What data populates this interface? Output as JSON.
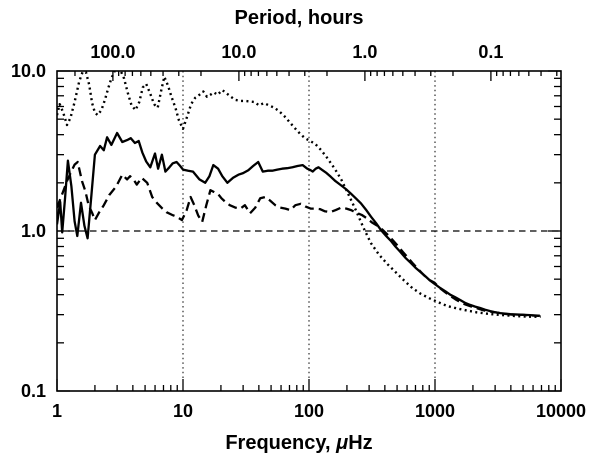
{
  "figure": {
    "background": "#ffffff",
    "foreground": "#000000",
    "top_title": "Period, hours",
    "xlabel_prefix": "Frequency, ",
    "xlabel_mu": "μ",
    "xlabel_suffix": "Hz"
  },
  "chart_data": {
    "type": "line",
    "title": "Period, hours (top axis) vs Frequency (bottom axis)",
    "xlabel": "Frequency, μHz",
    "ylabel": "",
    "x_axis": {
      "scale": "log",
      "range": [
        1,
        10000
      ],
      "ticks": [
        1,
        10,
        100,
        1000,
        10000
      ],
      "tick_labels": [
        "1",
        "10",
        "100",
        "1000",
        "10000"
      ]
    },
    "y_axis": {
      "scale": "log",
      "range": [
        0.1,
        10
      ],
      "ticks": [
        0.1,
        1,
        10
      ],
      "tick_labels": [
        "0.1",
        "1.0",
        "10.0"
      ]
    },
    "top_axis": {
      "label": "Period, hours",
      "ticks_period_hours": [
        100,
        10,
        1,
        0.1
      ],
      "tick_labels": [
        "100.0",
        "10.0",
        "1.0",
        "0.1"
      ]
    },
    "gridlines": {
      "vertical_x": [
        10,
        100,
        1000
      ],
      "vertical_style": "dotted",
      "horizontal_y": [
        1.0
      ],
      "horizontal_style": "dashed"
    },
    "legend": "none",
    "series": [
      {
        "name": "dotted-curve",
        "style": "dotted",
        "points": [
          [
            1.0,
            5.3
          ],
          [
            1.05,
            6.2
          ],
          [
            1.12,
            5.5
          ],
          [
            1.2,
            4.6
          ],
          [
            1.28,
            5.1
          ],
          [
            1.38,
            6.4
          ],
          [
            1.5,
            8.6
          ],
          [
            1.6,
            9.9
          ],
          [
            1.7,
            9.8
          ],
          [
            1.8,
            8.2
          ],
          [
            1.9,
            6.3
          ],
          [
            2.0,
            5.5
          ],
          [
            2.1,
            5.3
          ],
          [
            2.25,
            5.7
          ],
          [
            2.4,
            6.6
          ],
          [
            2.55,
            7.8
          ],
          [
            2.7,
            9.0
          ],
          [
            2.9,
            10.2
          ],
          [
            3.15,
            10.3
          ],
          [
            3.4,
            9.0
          ],
          [
            3.65,
            7.3
          ],
          [
            3.9,
            6.1
          ],
          [
            4.2,
            5.7
          ],
          [
            4.5,
            6.4
          ],
          [
            4.8,
            7.9
          ],
          [
            5.1,
            8.3
          ],
          [
            5.5,
            7.2
          ],
          [
            5.9,
            6.2
          ],
          [
            6.3,
            5.9
          ],
          [
            6.7,
            7.5
          ],
          [
            7.1,
            9.2
          ],
          [
            7.6,
            8.1
          ],
          [
            8.1,
            6.9
          ],
          [
            8.7,
            5.9
          ],
          [
            9.3,
            4.9
          ],
          [
            10.0,
            4.35
          ],
          [
            10.8,
            5.2
          ],
          [
            11.6,
            6.2
          ],
          [
            12.5,
            6.8
          ],
          [
            13.5,
            7.1
          ],
          [
            14.5,
            7.45
          ],
          [
            15.5,
            6.9
          ],
          [
            16.5,
            7.1
          ],
          [
            17.6,
            7.35
          ],
          [
            18.8,
            7.1
          ],
          [
            20.5,
            7.6
          ],
          [
            22.0,
            7.3
          ],
          [
            24.0,
            6.9
          ],
          [
            26.0,
            6.6
          ],
          [
            28.5,
            6.5
          ],
          [
            31.0,
            6.5
          ],
          [
            34.0,
            6.45
          ],
          [
            37.0,
            6.4
          ],
          [
            40.0,
            6.1
          ],
          [
            44.0,
            6.3
          ],
          [
            48.0,
            6.1
          ],
          [
            53.0,
            5.9
          ],
          [
            58.0,
            5.6
          ],
          [
            64.0,
            5.2
          ],
          [
            70.0,
            4.8
          ],
          [
            77.0,
            4.4
          ],
          [
            85.0,
            4.05
          ],
          [
            93.0,
            3.8
          ],
          [
            102.0,
            3.65
          ],
          [
            112.0,
            3.5
          ],
          [
            125.0,
            3.2
          ],
          [
            140.0,
            2.85
          ],
          [
            160.0,
            2.45
          ],
          [
            180.0,
            2.1
          ],
          [
            205.0,
            1.7
          ],
          [
            235.0,
            1.35
          ],
          [
            270.0,
            1.05
          ],
          [
            310.0,
            0.84
          ],
          [
            360.0,
            0.71
          ],
          [
            420.0,
            0.62
          ],
          [
            490.0,
            0.55
          ],
          [
            570.0,
            0.49
          ],
          [
            660.0,
            0.44
          ],
          [
            770.0,
            0.405
          ],
          [
            900.0,
            0.38
          ],
          [
            1050.0,
            0.36
          ],
          [
            1250.0,
            0.34
          ],
          [
            1500.0,
            0.328
          ],
          [
            1800.0,
            0.318
          ],
          [
            2150.0,
            0.31
          ],
          [
            2600.0,
            0.304
          ],
          [
            3100.0,
            0.3
          ],
          [
            3700.0,
            0.297
          ],
          [
            4400.0,
            0.294
          ],
          [
            5200.0,
            0.292
          ],
          [
            6100.0,
            0.291
          ],
          [
            6900.0,
            0.292
          ]
        ]
      },
      {
        "name": "solid-curve",
        "style": "solid",
        "points": [
          [
            1.0,
            1.1
          ],
          [
            1.06,
            1.52
          ],
          [
            1.1,
            0.98
          ],
          [
            1.16,
            1.62
          ],
          [
            1.22,
            2.75
          ],
          [
            1.3,
            1.9
          ],
          [
            1.38,
            1.15
          ],
          [
            1.45,
            0.93
          ],
          [
            1.55,
            1.5
          ],
          [
            1.65,
            1.08
          ],
          [
            1.75,
            0.9
          ],
          [
            1.88,
            1.7
          ],
          [
            2.0,
            3.0
          ],
          [
            2.2,
            3.4
          ],
          [
            2.35,
            3.2
          ],
          [
            2.5,
            3.85
          ],
          [
            2.7,
            3.45
          ],
          [
            3.0,
            4.1
          ],
          [
            3.3,
            3.6
          ],
          [
            3.6,
            3.7
          ],
          [
            3.85,
            3.8
          ],
          [
            4.15,
            3.55
          ],
          [
            4.45,
            3.65
          ],
          [
            4.75,
            3.1
          ],
          [
            5.1,
            2.72
          ],
          [
            5.5,
            2.5
          ],
          [
            6.0,
            3.05
          ],
          [
            6.35,
            2.45
          ],
          [
            6.8,
            3.0
          ],
          [
            7.25,
            2.35
          ],
          [
            7.8,
            2.5
          ],
          [
            8.3,
            2.65
          ],
          [
            8.9,
            2.7
          ],
          [
            9.5,
            2.55
          ],
          [
            10.0,
            2.42
          ],
          [
            11.0,
            2.38
          ],
          [
            12.0,
            2.35
          ],
          [
            13.5,
            2.1
          ],
          [
            15.0,
            2.0
          ],
          [
            16.2,
            2.2
          ],
          [
            17.4,
            2.58
          ],
          [
            19.0,
            2.45
          ],
          [
            20.5,
            2.2
          ],
          [
            22.5,
            2.0
          ],
          [
            25.0,
            2.15
          ],
          [
            27.5,
            2.25
          ],
          [
            30.0,
            2.3
          ],
          [
            33.0,
            2.4
          ],
          [
            36.0,
            2.55
          ],
          [
            39.5,
            2.7
          ],
          [
            43.0,
            2.35
          ],
          [
            47.0,
            2.38
          ],
          [
            51.0,
            2.38
          ],
          [
            56.0,
            2.42
          ],
          [
            61.0,
            2.45
          ],
          [
            67.0,
            2.47
          ],
          [
            74.0,
            2.5
          ],
          [
            81.0,
            2.55
          ],
          [
            89.0,
            2.58
          ],
          [
            97.0,
            2.45
          ],
          [
            103.0,
            2.4
          ],
          [
            107.0,
            2.35
          ],
          [
            113.0,
            2.45
          ],
          [
            119.0,
            2.5
          ],
          [
            128.0,
            2.4
          ],
          [
            138.0,
            2.3
          ],
          [
            149.0,
            2.18
          ],
          [
            162.0,
            2.05
          ],
          [
            178.0,
            1.94
          ],
          [
            196.0,
            1.83
          ],
          [
            214.0,
            1.72
          ],
          [
            235.0,
            1.6
          ],
          [
            258.0,
            1.49
          ],
          [
            283.0,
            1.36
          ],
          [
            310.0,
            1.23
          ],
          [
            340.0,
            1.12
          ],
          [
            370.0,
            1.02
          ],
          [
            405.0,
            0.94
          ],
          [
            445.0,
            0.87
          ],
          [
            485.0,
            0.8
          ],
          [
            530.0,
            0.74
          ],
          [
            582.0,
            0.68
          ],
          [
            638.0,
            0.635
          ],
          [
            700.0,
            0.59
          ],
          [
            765.0,
            0.555
          ],
          [
            840.0,
            0.52
          ],
          [
            915.0,
            0.49
          ],
          [
            1000.0,
            0.465
          ],
          [
            1100.0,
            0.44
          ],
          [
            1210.0,
            0.42
          ],
          [
            1320.0,
            0.4
          ],
          [
            1450.0,
            0.385
          ],
          [
            1590.0,
            0.37
          ],
          [
            1740.0,
            0.355
          ],
          [
            1900.0,
            0.345
          ],
          [
            2080.0,
            0.337
          ],
          [
            2280.0,
            0.33
          ],
          [
            2500.0,
            0.322
          ],
          [
            2740.0,
            0.316
          ],
          [
            3000.0,
            0.311
          ],
          [
            3300.0,
            0.307
          ],
          [
            3950.0,
            0.302
          ],
          [
            4750.0,
            0.3
          ],
          [
            5700.0,
            0.298
          ],
          [
            6800.0,
            0.295
          ]
        ]
      },
      {
        "name": "dashed-curve",
        "style": "dashed",
        "points": [
          [
            1.0,
            1.4
          ],
          [
            1.1,
            1.7
          ],
          [
            1.2,
            2.05
          ],
          [
            1.28,
            2.3
          ],
          [
            1.38,
            2.6
          ],
          [
            1.46,
            2.7
          ],
          [
            1.58,
            2.05
          ],
          [
            1.68,
            1.77
          ],
          [
            1.78,
            1.45
          ],
          [
            1.9,
            1.3
          ],
          [
            2.0,
            1.17
          ],
          [
            2.15,
            1.3
          ],
          [
            2.35,
            1.45
          ],
          [
            2.6,
            1.68
          ],
          [
            2.95,
            1.9
          ],
          [
            3.3,
            2.25
          ],
          [
            3.6,
            2.1
          ],
          [
            3.8,
            2.2
          ],
          [
            4.05,
            2.1
          ],
          [
            4.3,
            1.95
          ],
          [
            4.7,
            2.15
          ],
          [
            5.2,
            2.0
          ],
          [
            5.7,
            1.63
          ],
          [
            6.2,
            1.5
          ],
          [
            6.8,
            1.39
          ],
          [
            7.4,
            1.31
          ],
          [
            8.2,
            1.26
          ],
          [
            8.9,
            1.23
          ],
          [
            9.8,
            1.17
          ],
          [
            10.7,
            1.35
          ],
          [
            11.5,
            1.63
          ],
          [
            12.3,
            1.45
          ],
          [
            13.2,
            1.25
          ],
          [
            14.2,
            1.14
          ],
          [
            15.3,
            1.45
          ],
          [
            16.5,
            1.8
          ],
          [
            17.7,
            1.75
          ],
          [
            19.0,
            1.7
          ],
          [
            20.2,
            1.6
          ],
          [
            21.7,
            1.52
          ],
          [
            23.5,
            1.45
          ],
          [
            26.0,
            1.4
          ],
          [
            28.5,
            1.38
          ],
          [
            31.0,
            1.45
          ],
          [
            34.0,
            1.29
          ],
          [
            37.5,
            1.4
          ],
          [
            41.0,
            1.6
          ],
          [
            45.0,
            1.63
          ],
          [
            49.0,
            1.55
          ],
          [
            54.0,
            1.45
          ],
          [
            59.0,
            1.4
          ],
          [
            65.0,
            1.38
          ],
          [
            71.0,
            1.35
          ],
          [
            78.0,
            1.45
          ],
          [
            86.0,
            1.48
          ],
          [
            94.0,
            1.42
          ],
          [
            103.0,
            1.38
          ],
          [
            113.0,
            1.38
          ],
          [
            122.0,
            1.37
          ],
          [
            133.0,
            1.33
          ],
          [
            147.0,
            1.31
          ],
          [
            163.0,
            1.35
          ],
          [
            180.0,
            1.4
          ],
          [
            198.0,
            1.38
          ],
          [
            216.0,
            1.35
          ],
          [
            238.0,
            1.3
          ],
          [
            262.0,
            1.26
          ],
          [
            288.0,
            1.2
          ],
          [
            316.0,
            1.13
          ],
          [
            348.0,
            1.08
          ],
          [
            382.0,
            1.02
          ],
          [
            420.0,
            0.95
          ],
          [
            460.0,
            0.88
          ],
          [
            505.0,
            0.81
          ],
          [
            555.0,
            0.74
          ],
          [
            610.0,
            0.68
          ],
          [
            670.0,
            0.625
          ],
          [
            740.0,
            0.575
          ],
          [
            815.0,
            0.53
          ],
          [
            900.0,
            0.495
          ],
          [
            990.0,
            0.475
          ],
          [
            1090.0,
            0.44
          ],
          [
            1200.0,
            0.415
          ],
          [
            1320.0,
            0.393
          ],
          [
            1450.0,
            0.375
          ],
          [
            1600.0,
            0.358
          ],
          [
            1760.0,
            0.346
          ],
          [
            1940.0,
            0.337
          ],
          [
            2130.0,
            0.33
          ],
          [
            2340.0,
            0.322
          ],
          [
            2580.0,
            0.316
          ],
          [
            2840.0,
            0.312
          ],
          [
            3120.0,
            0.309
          ],
          [
            3440.0,
            0.305
          ],
          [
            3780.0,
            0.302
          ],
          [
            4160.0,
            0.3
          ],
          [
            4580.0,
            0.3
          ],
          [
            5040.0,
            0.299
          ],
          [
            5540.0,
            0.297
          ],
          [
            6100.0,
            0.296
          ],
          [
            6700.0,
            0.295
          ]
        ]
      }
    ]
  }
}
